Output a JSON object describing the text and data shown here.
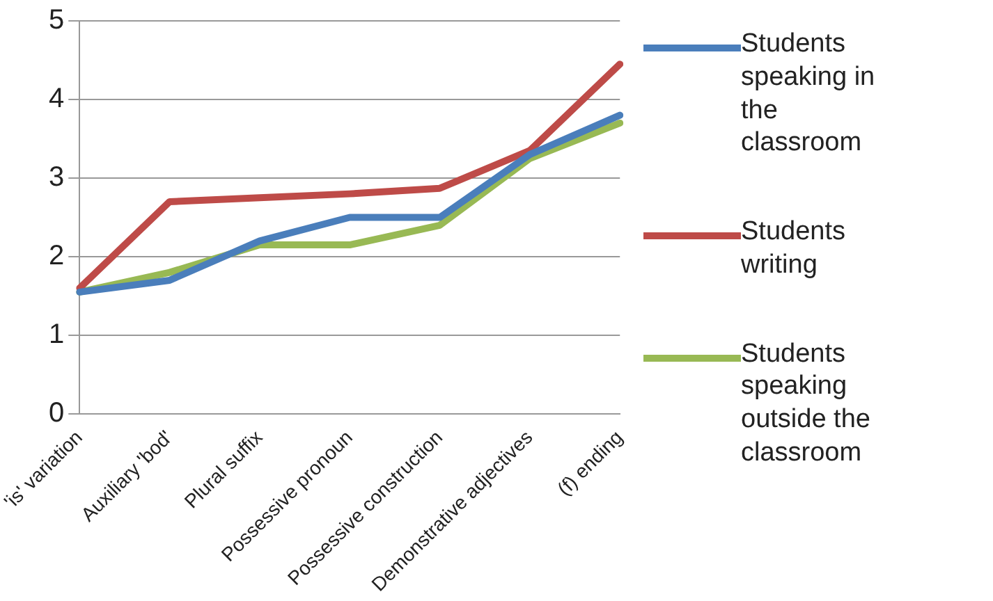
{
  "chart_data": {
    "type": "line",
    "categories": [
      "'is' variation",
      "Auxiliary 'bod'",
      "Plural suffix",
      "Possessive pronoun",
      "Possessive construction",
      "Demonstrative adjectives",
      "(f) ending"
    ],
    "series": [
      {
        "name": "Students speaking in the classroom",
        "color": "#4a7ebb",
        "values": [
          1.55,
          1.7,
          2.2,
          2.5,
          2.5,
          3.3,
          3.8
        ]
      },
      {
        "name": "Students writing",
        "color": "#be4b48",
        "values": [
          1.6,
          2.7,
          2.75,
          2.8,
          2.87,
          3.35,
          4.45
        ]
      },
      {
        "name": "Students speaking outside the classroom",
        "color": "#98b954",
        "values": [
          1.55,
          1.8,
          2.15,
          2.15,
          2.4,
          3.25,
          3.7
        ]
      }
    ],
    "ylim": [
      0,
      5
    ],
    "yticks": [
      0,
      1,
      2,
      3,
      4,
      5
    ],
    "grid": "y",
    "legend": "right",
    "marker": "none",
    "line_style": "solid"
  }
}
